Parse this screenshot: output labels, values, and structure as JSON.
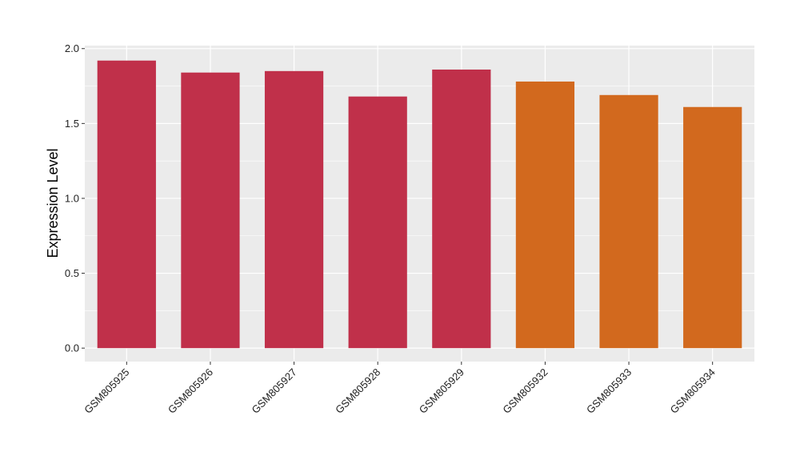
{
  "chart_data": {
    "type": "bar",
    "title": "",
    "xlabel": "",
    "ylabel": "Expression Level",
    "ylim": [
      -0.09,
      2.02
    ],
    "y_ticks": [
      0.0,
      0.5,
      1.0,
      1.5,
      2.0
    ],
    "y_tick_labels": [
      "0.0",
      "0.5",
      "1.0",
      "1.5",
      "2.0"
    ],
    "grid": true,
    "legend": "none",
    "categories": [
      "GSM805925",
      "GSM805926",
      "GSM805927",
      "GSM805928",
      "GSM805929",
      "GSM805932",
      "GSM805933",
      "GSM805934"
    ],
    "values": [
      1.92,
      1.84,
      1.85,
      1.68,
      1.86,
      1.78,
      1.69,
      1.61
    ],
    "bar_colors": [
      "#c0304a",
      "#c0304a",
      "#c0304a",
      "#c0304a",
      "#c0304a",
      "#d2691e",
      "#d2691e",
      "#d2691e"
    ],
    "panel_background": "#ebebeb",
    "gridline_color": "#ffffff"
  }
}
